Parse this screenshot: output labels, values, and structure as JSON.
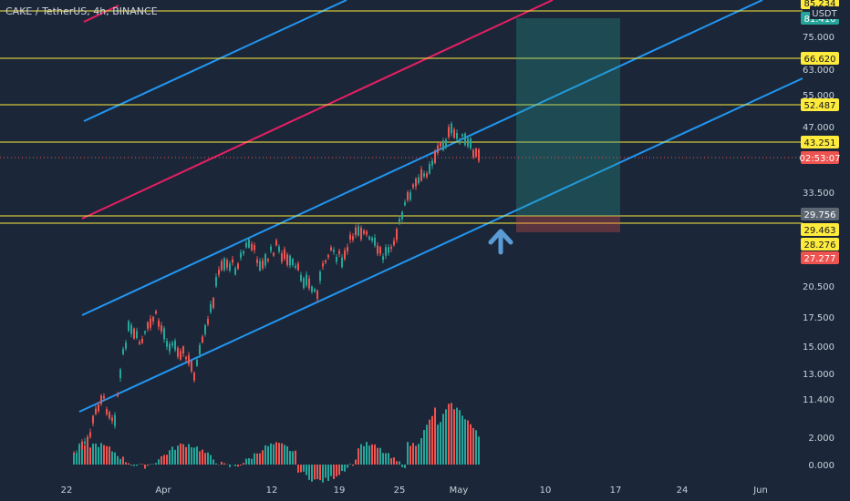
{
  "header": {
    "title": "CAKE / TetherUS, 4h, BINANCE",
    "currency": "USDT"
  },
  "colors": {
    "background": "#1b2738",
    "up": "#26a69a",
    "down": "#ef5350",
    "hline": "#ffeb3b",
    "channel": "#2196f3",
    "median": "#e91e63",
    "target": "#26a69a",
    "stop": "#ef5350",
    "arrow": "#5b9bd5"
  },
  "y_ticks": [
    "75.000",
    "63.000",
    "55.000",
    "47.000",
    "33.500",
    "20.500",
    "17.500",
    "15.000",
    "13.000",
    "11.400",
    "2.000",
    "0.000"
  ],
  "x_ticks": [
    "22",
    "Apr",
    "12",
    "19",
    "25",
    "May",
    "10",
    "17",
    "24",
    "Jun"
  ],
  "price_tags": [
    {
      "text": "85.234",
      "kind": "yellow"
    },
    {
      "text": "81.410",
      "kind": "teal"
    },
    {
      "text": "66.620",
      "kind": "yellow"
    },
    {
      "text": "52.487",
      "kind": "yellow"
    },
    {
      "text": "43.251",
      "kind": "yellow"
    },
    {
      "text": "02:53:07",
      "kind": "red"
    },
    {
      "text": "29.756",
      "kind": "gray"
    },
    {
      "text": "29.463",
      "kind": "yellow"
    },
    {
      "text": "28.276",
      "kind": "yellow"
    },
    {
      "text": "27.277",
      "kind": "red"
    }
  ],
  "chart_data": {
    "type": "line",
    "title": "CAKE / TetherUS, 4h, BINANCE",
    "yscale": "log",
    "y_unit": "USDT",
    "horizontal_levels": [
      85.234,
      66.62,
      52.487,
      43.251,
      29.756,
      29.463
    ],
    "current_price": 38.8,
    "position": {
      "entry": 29.756,
      "target": 81.41,
      "stop": 27.277
    },
    "price_path": [
      11.4,
      12.0,
      14.6,
      13.2,
      19.2,
      18.0,
      20.4,
      18.2,
      17.6,
      16.0,
      19.8,
      25.4,
      24.8,
      27.4,
      24.8,
      27.0,
      25.2,
      23.8,
      22.2,
      27.0,
      25.2,
      29.4,
      27.6,
      25.8,
      28.6,
      33.8,
      36.0,
      39.8,
      43.0,
      41.6,
      38.8
    ],
    "indicator": {
      "name": "oscillator",
      "ylim": [
        0,
        2.7
      ]
    }
  }
}
